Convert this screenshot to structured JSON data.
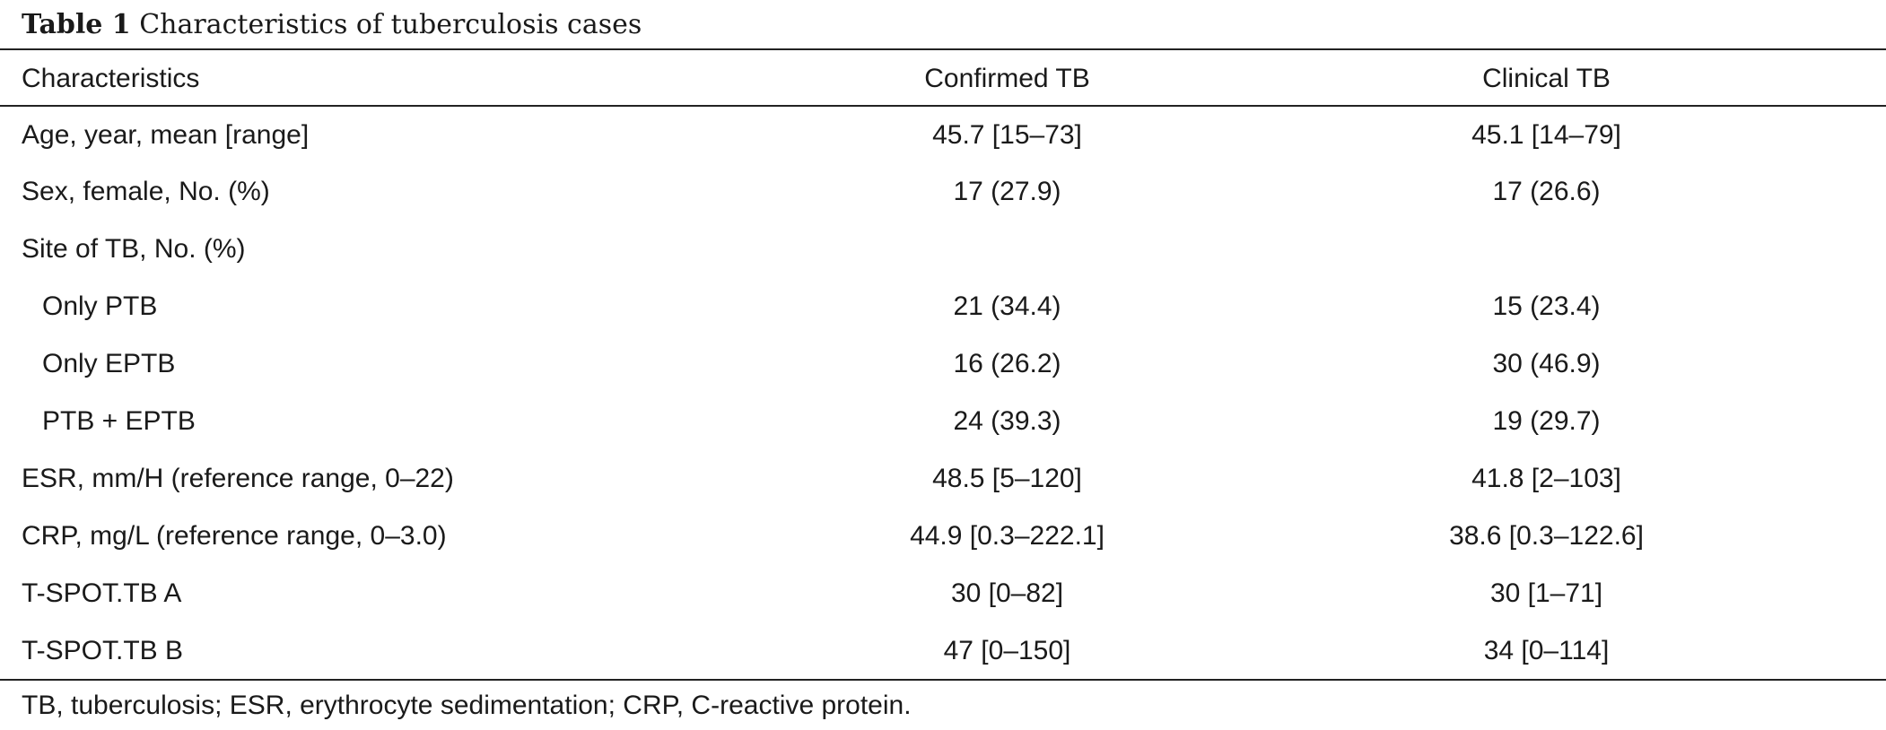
{
  "caption": {
    "label": "Table 1",
    "title": "Characteristics of tuberculosis cases"
  },
  "table": {
    "headers": [
      "Characteristics",
      "Confirmed TB",
      "Clinical TB"
    ],
    "rows": [
      {
        "characteristic": "Age, year, mean [range]",
        "confirmed": "45.7 [15–73]",
        "clinical": "45.1 [14–79]"
      },
      {
        "characteristic": "Sex, female, No. (%)",
        "confirmed": "17 (27.9)",
        "clinical": "17 (26.6)"
      },
      {
        "characteristic": "Site of TB, No. (%)",
        "confirmed": "",
        "clinical": ""
      },
      {
        "characteristic": "Only PTB",
        "confirmed": "21 (34.4)",
        "clinical": "15 (23.4)"
      },
      {
        "characteristic": "Only EPTB",
        "confirmed": "16 (26.2)",
        "clinical": "30 (46.9)"
      },
      {
        "characteristic": "PTB + EPTB",
        "confirmed": "24 (39.3)",
        "clinical": "19 (29.7)"
      },
      {
        "characteristic": "ESR, mm/H (reference range, 0–22)",
        "confirmed": "48.5 [5–120]",
        "clinical": "41.8 [2–103]"
      },
      {
        "characteristic": "CRP, mg/L (reference range, 0–3.0)",
        "confirmed": "44.9 [0.3–222.1]",
        "clinical": "38.6 [0.3–122.6]"
      },
      {
        "characteristic": "T-SPOT.TB A",
        "confirmed": "30 [0–82]",
        "clinical": "30 [1–71]"
      },
      {
        "characteristic": "T-SPOT.TB B",
        "confirmed": "47 [0–150]",
        "clinical": "34 [0–114]"
      }
    ]
  },
  "footnote": "TB, tuberculosis; ESR, erythrocyte sedimentation; CRP, C-reactive protein."
}
